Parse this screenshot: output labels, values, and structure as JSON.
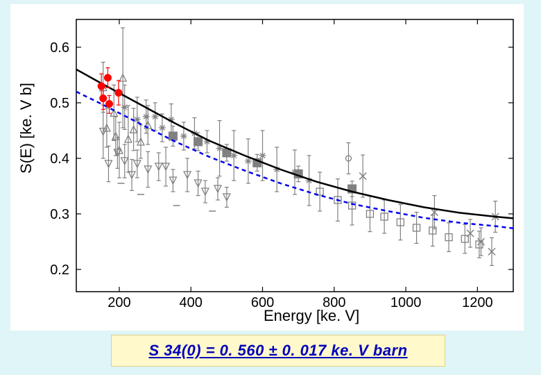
{
  "chart": {
    "type": "scatter+line",
    "xlabel": "Energy [ke. V]",
    "ylabel": "S(E) [ke. V b]",
    "label_fontsize": 22,
    "tick_fontsize": 20,
    "background_color": "#ffffff",
    "page_bg": "#e0f5f8",
    "plot_border_color": "#000000",
    "xlim": [
      80,
      1300
    ],
    "ylim": [
      0.16,
      0.65
    ],
    "xtick_values": [
      200,
      400,
      600,
      800,
      1000,
      1200
    ],
    "ytick_values": [
      0.2,
      0.3,
      0.4,
      0.5,
      0.6
    ],
    "xtick_labels": [
      "200",
      "400",
      "600",
      "800",
      "1000",
      "1200"
    ],
    "ytick_labels": [
      "0.2",
      "0.3",
      "0.4",
      "0.5",
      "0.6"
    ],
    "curves": {
      "black_fit": {
        "color": "#000000",
        "width": 2.5,
        "dash": "",
        "points": [
          [
            80,
            0.56
          ],
          [
            150,
            0.535
          ],
          [
            250,
            0.5
          ],
          [
            350,
            0.465
          ],
          [
            450,
            0.432
          ],
          [
            550,
            0.405
          ],
          [
            650,
            0.38
          ],
          [
            750,
            0.358
          ],
          [
            850,
            0.34
          ],
          [
            950,
            0.325
          ],
          [
            1050,
            0.312
          ],
          [
            1150,
            0.302
          ],
          [
            1250,
            0.295
          ],
          [
            1300,
            0.292
          ]
        ]
      },
      "blue_fit": {
        "color": "#0000ee",
        "width": 2.5,
        "dash": "6,5",
        "points": [
          [
            80,
            0.52
          ],
          [
            150,
            0.498
          ],
          [
            250,
            0.465
          ],
          [
            350,
            0.432
          ],
          [
            450,
            0.403
          ],
          [
            550,
            0.378
          ],
          [
            650,
            0.355
          ],
          [
            750,
            0.335
          ],
          [
            850,
            0.318
          ],
          [
            950,
            0.305
          ],
          [
            1050,
            0.293
          ],
          [
            1150,
            0.284
          ],
          [
            1250,
            0.278
          ],
          [
            1300,
            0.274
          ]
        ]
      }
    },
    "red_points": {
      "color": "#ff0000",
      "marker": "circle",
      "size": 5,
      "err_w": 4,
      "data": [
        {
          "x": 150,
          "y": 0.53,
          "elo": 0.022,
          "ehi": 0.022
        },
        {
          "x": 155,
          "y": 0.508,
          "elo": 0.02,
          "ehi": 0.02
        },
        {
          "x": 168,
          "y": 0.545,
          "elo": 0.018,
          "ehi": 0.018
        },
        {
          "x": 172,
          "y": 0.498,
          "elo": 0.017,
          "ehi": 0.015
        },
        {
          "x": 198,
          "y": 0.518,
          "elo": 0.022,
          "ehi": 0.022
        }
      ]
    },
    "gray_filled_squares": {
      "color": "#808080",
      "marker": "square_filled",
      "size": 6,
      "data": [
        {
          "x": 350,
          "y": 0.44,
          "elo": 0.018,
          "ehi": 0.018
        },
        {
          "x": 420,
          "y": 0.43,
          "elo": 0.016,
          "ehi": 0.016
        },
        {
          "x": 500,
          "y": 0.41,
          "elo": 0.015,
          "ehi": 0.015
        },
        {
          "x": 585,
          "y": 0.392,
          "elo": 0.015,
          "ehi": 0.015
        },
        {
          "x": 700,
          "y": 0.372,
          "elo": 0.014,
          "ehi": 0.014
        },
        {
          "x": 850,
          "y": 0.345,
          "elo": 0.014,
          "ehi": 0.014
        }
      ]
    },
    "gray_open_circles": {
      "color": "#808080",
      "marker": "circle_open",
      "size": 4,
      "data": [
        {
          "x": 840,
          "y": 0.4,
          "elo": 0.028,
          "ehi": 0.028
        }
      ]
    },
    "gray_crosses": {
      "color": "#808080",
      "marker": "x",
      "size": 5,
      "data": [
        {
          "x": 880,
          "y": 0.368,
          "elo": 0.038,
          "ehi": 0.038
        },
        {
          "x": 1080,
          "y": 0.303,
          "elo": 0.03,
          "ehi": 0.03
        },
        {
          "x": 1250,
          "y": 0.295,
          "elo": 0.028,
          "ehi": 0.028
        },
        {
          "x": 1180,
          "y": 0.265,
          "elo": 0.025,
          "ehi": 0.025
        },
        {
          "x": 1210,
          "y": 0.25,
          "elo": 0.025,
          "ehi": 0.025
        },
        {
          "x": 1240,
          "y": 0.232,
          "elo": 0.025,
          "ehi": 0.025
        }
      ]
    },
    "gray_open_triangles": {
      "color": "#808080",
      "marker": "triangle_open",
      "size": 5,
      "data": [
        {
          "x": 155,
          "y": 0.528,
          "elo": 0.045,
          "ehi": 0.045
        },
        {
          "x": 165,
          "y": 0.455,
          "elo": 0.035,
          "ehi": 0.035
        },
        {
          "x": 185,
          "y": 0.482,
          "elo": 0.05,
          "ehi": 0.05
        },
        {
          "x": 210,
          "y": 0.545,
          "elo": 0.09,
          "ehi": 0.09
        },
        {
          "x": 190,
          "y": 0.44,
          "elo": 0.035,
          "ehi": 0.035
        },
        {
          "x": 200,
          "y": 0.415,
          "elo": 0.05,
          "ehi": 0.05
        },
        {
          "x": 225,
          "y": 0.435,
          "elo": 0.06,
          "ehi": 0.06
        },
        {
          "x": 240,
          "y": 0.452,
          "elo": 0.038,
          "ehi": 0.038
        },
        {
          "x": 260,
          "y": 0.43,
          "elo": 0.03,
          "ehi": 0.03
        },
        {
          "x": 280,
          "y": 0.46,
          "elo": 0.035,
          "ehi": 0.035
        }
      ]
    },
    "gray_open_down_triangles": {
      "color": "#808080",
      "marker": "triangle_down_open",
      "size": 5,
      "data": [
        {
          "x": 155,
          "y": 0.448,
          "elo": 0.048,
          "ehi": 0.048
        },
        {
          "x": 170,
          "y": 0.39,
          "elo": 0.032,
          "ehi": 0.032
        },
        {
          "x": 195,
          "y": 0.41,
          "elo": 0.028,
          "ehi": 0.028
        },
        {
          "x": 215,
          "y": 0.395,
          "elo": 0.03,
          "ehi": 0.03
        },
        {
          "x": 250,
          "y": 0.39,
          "elo": 0.025,
          "ehi": 0.025
        },
        {
          "x": 235,
          "y": 0.37,
          "elo": 0.028,
          "ehi": 0.028
        },
        {
          "x": 280,
          "y": 0.38,
          "elo": 0.032,
          "ehi": 0.032
        },
        {
          "x": 310,
          "y": 0.385,
          "elo": 0.025,
          "ehi": 0.025
        },
        {
          "x": 330,
          "y": 0.385,
          "elo": 0.035,
          "ehi": 0.035
        },
        {
          "x": 350,
          "y": 0.36,
          "elo": 0.02,
          "ehi": 0.02
        },
        {
          "x": 390,
          "y": 0.37,
          "elo": 0.03,
          "ehi": 0.03
        },
        {
          "x": 420,
          "y": 0.355,
          "elo": 0.022,
          "ehi": 0.022
        },
        {
          "x": 440,
          "y": 0.34,
          "elo": 0.02,
          "ehi": 0.02
        },
        {
          "x": 475,
          "y": 0.345,
          "elo": 0.02,
          "ehi": 0.02
        },
        {
          "x": 500,
          "y": 0.33,
          "elo": 0.018,
          "ehi": 0.018
        }
      ]
    },
    "gray_asterisks": {
      "color": "#808080",
      "marker": "asterisk",
      "size": 5,
      "data": [
        {
          "x": 215,
          "y": 0.492,
          "elo": 0.04,
          "ehi": 0.04
        },
        {
          "x": 250,
          "y": 0.47,
          "elo": 0.04,
          "ehi": 0.04
        },
        {
          "x": 275,
          "y": 0.475,
          "elo": 0.03,
          "ehi": 0.03
        },
        {
          "x": 300,
          "y": 0.475,
          "elo": 0.025,
          "ehi": 0.025
        },
        {
          "x": 320,
          "y": 0.455,
          "elo": 0.025,
          "ehi": 0.025
        },
        {
          "x": 345,
          "y": 0.47,
          "elo": 0.028,
          "ehi": 0.028
        },
        {
          "x": 380,
          "y": 0.44,
          "elo": 0.025,
          "ehi": 0.025
        },
        {
          "x": 410,
          "y": 0.445,
          "elo": 0.028,
          "ehi": 0.028
        },
        {
          "x": 445,
          "y": 0.43,
          "elo": 0.02,
          "ehi": 0.02
        },
        {
          "x": 480,
          "y": 0.418,
          "elo": 0.05,
          "ehi": 0.05
        },
        {
          "x": 520,
          "y": 0.405,
          "elo": 0.045,
          "ehi": 0.045
        },
        {
          "x": 560,
          "y": 0.395,
          "elo": 0.04,
          "ehi": 0.04
        },
        {
          "x": 600,
          "y": 0.405,
          "elo": 0.045,
          "ehi": 0.045
        },
        {
          "x": 640,
          "y": 0.38,
          "elo": 0.04,
          "ehi": 0.04
        },
        {
          "x": 690,
          "y": 0.375,
          "elo": 0.04,
          "ehi": 0.04
        },
        {
          "x": 730,
          "y": 0.36,
          "elo": 0.045,
          "ehi": 0.045
        }
      ]
    },
    "gray_open_squares": {
      "color": "#808080",
      "marker": "square_open",
      "size": 5,
      "data": [
        {
          "x": 760,
          "y": 0.34,
          "elo": 0.035,
          "ehi": 0.035
        },
        {
          "x": 810,
          "y": 0.325,
          "elo": 0.038,
          "ehi": 0.038
        },
        {
          "x": 850,
          "y": 0.315,
          "elo": 0.035,
          "ehi": 0.035
        },
        {
          "x": 900,
          "y": 0.3,
          "elo": 0.032,
          "ehi": 0.032
        },
        {
          "x": 940,
          "y": 0.295,
          "elo": 0.03,
          "ehi": 0.03
        },
        {
          "x": 985,
          "y": 0.285,
          "elo": 0.032,
          "ehi": 0.032
        },
        {
          "x": 1030,
          "y": 0.275,
          "elo": 0.028,
          "ehi": 0.028
        },
        {
          "x": 1075,
          "y": 0.27,
          "elo": 0.028,
          "ehi": 0.028
        },
        {
          "x": 1120,
          "y": 0.258,
          "elo": 0.026,
          "ehi": 0.026
        },
        {
          "x": 1165,
          "y": 0.255,
          "elo": 0.026,
          "ehi": 0.026
        },
        {
          "x": 1205,
          "y": 0.245,
          "elo": 0.024,
          "ehi": 0.024
        }
      ]
    },
    "gray_dashes": {
      "color": "#808080",
      "marker": "dash",
      "size": 5,
      "data": [
        {
          "x": 205,
          "y": 0.355,
          "elo": 0,
          "ehi": 0
        },
        {
          "x": 260,
          "y": 0.335,
          "elo": 0,
          "ehi": 0
        },
        {
          "x": 360,
          "y": 0.315,
          "elo": 0,
          "ehi": 0
        },
        {
          "x": 460,
          "y": 0.305,
          "elo": 0,
          "ehi": 0
        }
      ]
    }
  },
  "caption": {
    "text": "S 34(0) = 0. 560 ± 0. 017 ke. V barn",
    "bg": "#fff9cc",
    "color": "#0000bb",
    "fontsize": 22
  }
}
